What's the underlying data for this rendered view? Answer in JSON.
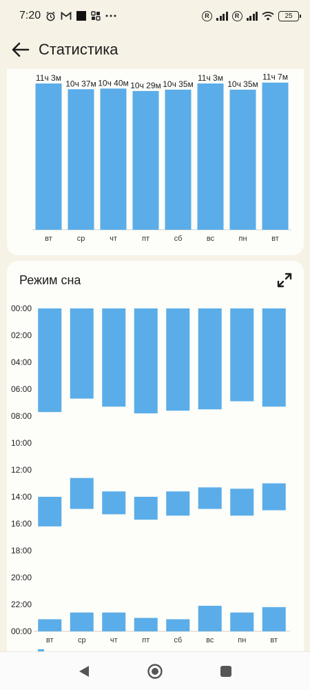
{
  "status_bar": {
    "time": "7:20",
    "battery": "25"
  },
  "app_bar": {
    "title": "Статистика"
  },
  "duration_chart": {
    "chart_data": {
      "type": "bar",
      "categories": [
        "вт",
        "ср",
        "чт",
        "пт",
        "сб",
        "вс",
        "пн",
        "вт"
      ],
      "values_minutes": [
        663,
        637,
        640,
        629,
        635,
        663,
        635,
        667
      ],
      "data_labels": [
        "11ч 3м",
        "10ч 37м",
        "10ч 40м",
        "10ч 29м",
        "10ч 35м",
        "11ч 3м",
        "10ч 35м",
        "11ч 7м"
      ],
      "color": "#5aade8"
    }
  },
  "sleep_mode": {
    "title": "Режим сна",
    "chart_data": {
      "type": "bar",
      "categories": [
        "вт",
        "ср",
        "чт",
        "пт",
        "сб",
        "вс",
        "пн",
        "вт"
      ],
      "y_ticks": [
        "00:00",
        "02:00",
        "04:00",
        "06:00",
        "08:00",
        "10:00",
        "12:00",
        "14:00",
        "16:00",
        "18:00",
        "20:00",
        "22:00",
        "00:00"
      ],
      "y_range_hours": [
        0,
        24
      ],
      "color": "#5aade8",
      "series": [
        {
          "values_hours": [
            [
              0,
              7.7
            ],
            [
              14.0,
              16.2
            ],
            [
              23.1,
              24
            ]
          ]
        },
        {
          "values_hours": [
            [
              0,
              6.7
            ],
            [
              12.6,
              14.9
            ],
            [
              22.6,
              24
            ]
          ]
        },
        {
          "values_hours": [
            [
              0,
              7.3
            ],
            [
              13.6,
              15.3
            ],
            [
              22.6,
              24
            ]
          ]
        },
        {
          "values_hours": [
            [
              0,
              7.8
            ],
            [
              14.0,
              15.7
            ],
            [
              23.0,
              24
            ]
          ]
        },
        {
          "values_hours": [
            [
              0,
              7.6
            ],
            [
              13.6,
              15.4
            ],
            [
              23.1,
              24
            ]
          ]
        },
        {
          "values_hours": [
            [
              0,
              7.5
            ],
            [
              13.3,
              14.9
            ],
            [
              22.1,
              24
            ]
          ]
        },
        {
          "values_hours": [
            [
              0,
              6.9
            ],
            [
              13.4,
              15.4
            ],
            [
              22.6,
              24
            ]
          ]
        },
        {
          "values_hours": [
            [
              0,
              7.3
            ],
            [
              13.0,
              15.0
            ],
            [
              22.2,
              24
            ]
          ]
        }
      ]
    }
  }
}
